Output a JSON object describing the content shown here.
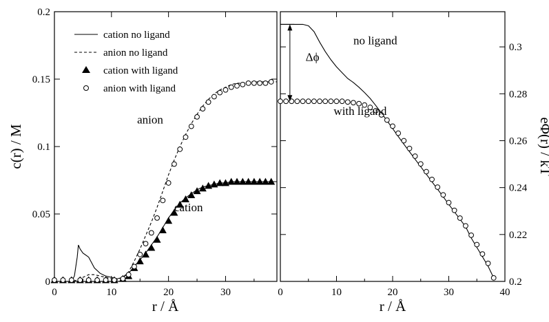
{
  "chart_data": [
    {
      "type": "line",
      "xlabel": "r / Å",
      "ylabel": "c(r) / M",
      "xlim": [
        0,
        39
      ],
      "ylim": [
        0,
        0.2
      ],
      "xticks": [
        "0",
        "10",
        "20",
        "30"
      ],
      "xtick_values": [
        0,
        10,
        20,
        30
      ],
      "yticks": [
        "0",
        "0.05",
        "0.1",
        "0.15",
        "0.2"
      ],
      "ytick_values": [
        0,
        0.05,
        0.1,
        0.15,
        0.2
      ],
      "legend_position": "top-left",
      "annotations": [
        {
          "text": "anion",
          "x": 14.5,
          "y": 0.117
        },
        {
          "text": "cation",
          "x": 21,
          "y": 0.052
        }
      ],
      "series": [
        {
          "name": "cation no ligand",
          "style": "solid",
          "x": [
            0,
            3.0,
            3.5,
            4.0,
            4.2,
            4.5,
            5,
            6,
            7,
            8,
            9,
            10,
            11,
            12,
            13,
            14,
            15,
            16,
            17,
            18,
            19,
            20,
            21,
            22,
            23,
            24,
            25,
            26,
            27,
            28,
            29,
            30,
            31,
            32,
            33,
            34,
            35,
            36,
            37,
            38,
            39
          ],
          "y": [
            0,
            0,
            0.004,
            0.018,
            0.027,
            0.024,
            0.021,
            0.018,
            0.01,
            0.006,
            0.004,
            0.003,
            0.002,
            0.003,
            0.006,
            0.011,
            0.016,
            0.021,
            0.027,
            0.033,
            0.04,
            0.047,
            0.053,
            0.058,
            0.062,
            0.065,
            0.068,
            0.07,
            0.071,
            0.072,
            0.073,
            0.073,
            0.074,
            0.074,
            0.074,
            0.074,
            0.074,
            0.074,
            0.074,
            0.074,
            0.074
          ]
        },
        {
          "name": "anion no ligand",
          "style": "dashed",
          "x": [
            0,
            3,
            4,
            5,
            6,
            7,
            8,
            9,
            10,
            11,
            12,
            13,
            14,
            15,
            16,
            17,
            18,
            19,
            20,
            21,
            22,
            23,
            24,
            25,
            26,
            27,
            28,
            29,
            30,
            31,
            32,
            33,
            34,
            35,
            36,
            37,
            38,
            39
          ],
          "y": [
            0,
            0,
            0.001,
            0.003,
            0.005,
            0.005,
            0.004,
            0.003,
            0.002,
            0.001,
            0.003,
            0.007,
            0.015,
            0.024,
            0.034,
            0.044,
            0.055,
            0.067,
            0.079,
            0.09,
            0.1,
            0.109,
            0.117,
            0.124,
            0.13,
            0.135,
            0.139,
            0.142,
            0.144,
            0.146,
            0.147,
            0.147,
            0.148,
            0.148,
            0.148,
            0.148,
            0.148,
            0.148
          ]
        },
        {
          "name": "cation with ligand",
          "style": "filled-triangle",
          "x": [
            0,
            1.5,
            3,
            4.5,
            6,
            7.5,
            9,
            10.5,
            12,
            13,
            14,
            15,
            16,
            17,
            18,
            19,
            20,
            21,
            22,
            23,
            24,
            25,
            26,
            27,
            28,
            29,
            30,
            31,
            32,
            33,
            34,
            35,
            36,
            37,
            38
          ],
          "y": [
            0.001,
            0.001,
            0.001,
            0.001,
            0.001,
            0.001,
            0.001,
            0.001,
            0.002,
            0.004,
            0.01,
            0.015,
            0.02,
            0.025,
            0.031,
            0.038,
            0.045,
            0.051,
            0.057,
            0.061,
            0.064,
            0.067,
            0.069,
            0.071,
            0.072,
            0.073,
            0.073,
            0.074,
            0.074,
            0.074,
            0.074,
            0.074,
            0.074,
            0.074,
            0.074
          ]
        },
        {
          "name": "anion with ligand",
          "style": "open-circle",
          "x": [
            0,
            1.5,
            3,
            4.5,
            6,
            7.5,
            9,
            10.5,
            12,
            13,
            14,
            15,
            16,
            17,
            18,
            19,
            20,
            21,
            22,
            23,
            24,
            25,
            26,
            27,
            28,
            29,
            30,
            31,
            32,
            33,
            34,
            35,
            36,
            37,
            38
          ],
          "y": [
            0.001,
            0.001,
            0.001,
            0.001,
            0.001,
            0.001,
            0.001,
            0.001,
            0.002,
            0.005,
            0.011,
            0.02,
            0.028,
            0.036,
            0.047,
            0.06,
            0.073,
            0.087,
            0.098,
            0.107,
            0.115,
            0.122,
            0.128,
            0.133,
            0.137,
            0.14,
            0.142,
            0.144,
            0.145,
            0.146,
            0.147,
            0.147,
            0.147,
            0.147,
            0.148
          ]
        }
      ]
    },
    {
      "type": "line",
      "xlabel": "r / Å",
      "ylabel": "eΦ(r) / kT",
      "xlim": [
        0,
        40
      ],
      "ylim": [
        0.2,
        0.315
      ],
      "xticks": [
        "0",
        "10",
        "20",
        "30",
        "40"
      ],
      "xtick_values": [
        0,
        10,
        20,
        30,
        40
      ],
      "yticks": [
        "0.2",
        "0.22",
        "0.24",
        "0.26",
        "0.28",
        "0.3"
      ],
      "ytick_values": [
        0.2,
        0.22,
        0.24,
        0.26,
        0.28,
        0.3
      ],
      "annotations": [
        {
          "text": "no ligand",
          "x": 13,
          "y": 0.301
        },
        {
          "text": "with ligand",
          "x": 9.5,
          "y": 0.271
        },
        {
          "text": "Δϕ",
          "x": 4.5,
          "y": 0.294
        }
      ],
      "series": [
        {
          "name": "no ligand",
          "style": "solid",
          "x": [
            0,
            1,
            2,
            3,
            4,
            5,
            6,
            7,
            8,
            9,
            10,
            11,
            12,
            13,
            14,
            15,
            16,
            17,
            18,
            19,
            20,
            21,
            22,
            23,
            24,
            25,
            26,
            27,
            28,
            29,
            30,
            31,
            32,
            33,
            34,
            35,
            36,
            37,
            38
          ],
          "y": [
            0.3096,
            0.3096,
            0.3096,
            0.3096,
            0.3096,
            0.309,
            0.3065,
            0.302,
            0.298,
            0.2945,
            0.2915,
            0.289,
            0.2865,
            0.2848,
            0.2828,
            0.2805,
            0.278,
            0.275,
            0.2718,
            0.2685,
            0.2652,
            0.2618,
            0.2585,
            0.2553,
            0.2521,
            0.2489,
            0.2457,
            0.2425,
            0.2393,
            0.2361,
            0.2329,
            0.2297,
            0.2265,
            0.2233,
            0.2185,
            0.2145,
            0.2105,
            0.2065,
            0.2015
          ]
        },
        {
          "name": "with ligand",
          "style": "open-circle",
          "x": [
            0,
            1,
            2,
            3,
            4,
            5,
            6,
            7,
            8,
            9,
            10,
            11,
            12,
            13,
            14,
            15,
            16,
            17,
            18,
            19,
            20,
            21,
            22,
            23,
            24,
            25,
            26,
            27,
            28,
            29,
            30,
            31,
            32,
            33,
            34,
            35,
            36,
            37,
            38
          ],
          "y": [
            0.2768,
            0.2768,
            0.2768,
            0.2768,
            0.2768,
            0.2768,
            0.2768,
            0.2768,
            0.2768,
            0.2768,
            0.2768,
            0.2768,
            0.2765,
            0.2762,
            0.2758,
            0.2752,
            0.2742,
            0.2728,
            0.271,
            0.2688,
            0.2662,
            0.2632,
            0.26,
            0.2567,
            0.2534,
            0.2501,
            0.2468,
            0.2435,
            0.2402,
            0.2369,
            0.2336,
            0.2303,
            0.227,
            0.2237,
            0.2197,
            0.2157,
            0.2117,
            0.2077,
            0.2015
          ]
        }
      ]
    }
  ]
}
